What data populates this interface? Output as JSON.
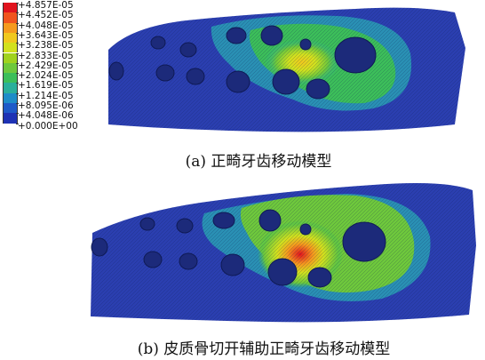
{
  "legend": {
    "labels": [
      "+4.857E-05",
      "+4.452E-05",
      "+4.048E-05",
      "+3.643E-05",
      "+3.238E-05",
      "+2.833E-05",
      "+2.429E-05",
      "+2.024E-05",
      "+1.619E-05",
      "+1.214E-05",
      "+8.095E-06",
      "+4.048E-06",
      "+0.000E+00"
    ],
    "colors": [
      "#e0141e",
      "#f0541e",
      "#f59a1e",
      "#f0c81e",
      "#d2e11e",
      "#a0d21e",
      "#6ec83c",
      "#3cbe5a",
      "#2aaf9b",
      "#1e8cc8",
      "#1e5ac8",
      "#1e32b4",
      "#1a2396"
    ]
  },
  "panels": {
    "a": {
      "caption": "(a) 正畸牙齿移动模型"
    },
    "b": {
      "caption": "(b) 皮质骨切开辅助正畸牙齿移动模型"
    }
  }
}
